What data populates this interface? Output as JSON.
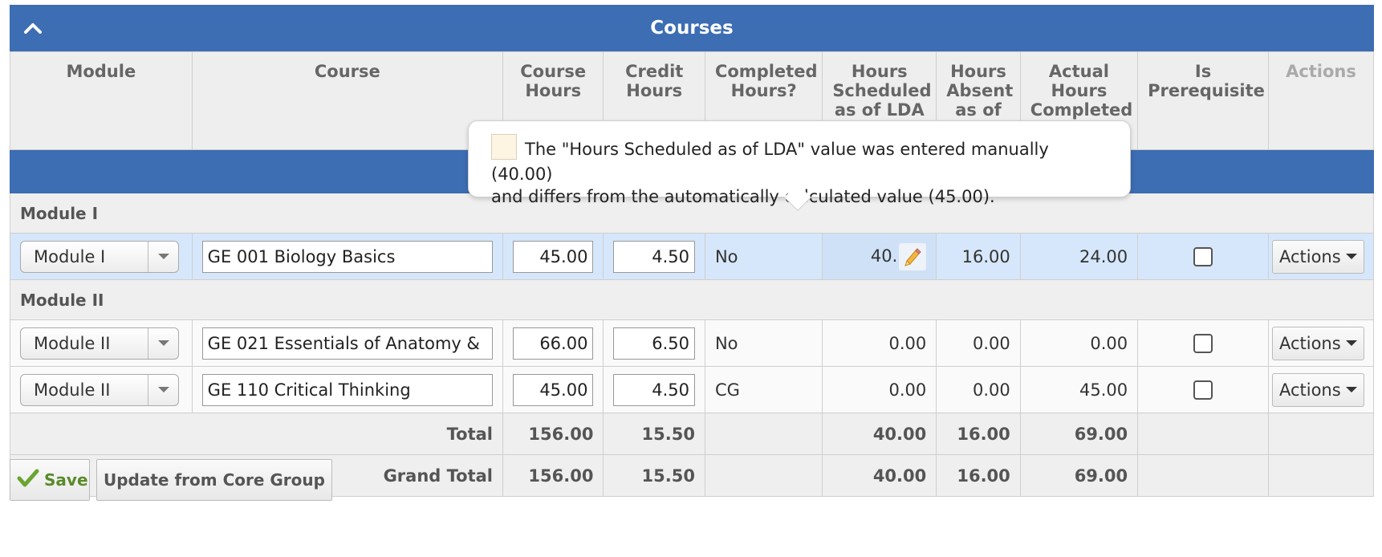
{
  "panel": {
    "title": "Courses",
    "collapse_icon": "chevron-up-icon",
    "accent_color": "#3d6db3"
  },
  "columns": {
    "module": "Module",
    "course": "Course",
    "course_hours": "Course Hours",
    "credit_hours": "Credit Hours",
    "completed": "Completed Hours?",
    "hours_scheduled": "Hours Scheduled as of LDA",
    "hours_absent": "Hours Absent as of LDA",
    "actual_hours": "Actual Hours Completed",
    "is_prerequisite": "Is Prerequisite",
    "actions": "Actions"
  },
  "groups": [
    {
      "name": "Module I",
      "rows": [
        {
          "module": "Module I",
          "course": "GE 001 Biology Basics",
          "course_hours": "45.00",
          "credit_hours": "4.50",
          "completed": "No",
          "hours_scheduled": "40.",
          "hours_absent": "16.00",
          "actual_hours": "24.00",
          "actions_label": "Actions"
        }
      ]
    },
    {
      "name": "Module II",
      "rows": [
        {
          "module": "Module II",
          "course": "GE 021 Essentials of Anatomy &",
          "course_hours": "66.00",
          "credit_hours": "6.50",
          "completed": "No",
          "hours_scheduled": "0.00",
          "hours_absent": "0.00",
          "actual_hours": "0.00",
          "actions_label": "Actions"
        },
        {
          "module": "Module II",
          "course": "GE 110 Critical Thinking",
          "course_hours": "45.00",
          "credit_hours": "4.50",
          "completed": "CG",
          "hours_scheduled": "0.00",
          "hours_absent": "0.00",
          "actual_hours": "45.00",
          "actions_label": "Actions"
        }
      ]
    }
  ],
  "totals": {
    "total": {
      "label": "Total",
      "course_hours": "156.00",
      "credit_hours": "15.50",
      "hours_scheduled": "40.00",
      "hours_absent": "16.00",
      "actual_hours": "69.00"
    },
    "grand_total": {
      "label": "Grand Total",
      "course_hours": "156.00",
      "credit_hours": "15.50",
      "hours_scheduled": "40.00",
      "hours_absent": "16.00",
      "actual_hours": "69.00"
    }
  },
  "tooltip": {
    "line1": "The \"Hours Scheduled as of LDA\" value was entered manually (40.00)",
    "line2": "and differs from the automatically calculated value (45.00).",
    "swatch_color": "#fdf5e2"
  },
  "footer": {
    "save_label": "Save",
    "update_label": "Update from Core Group"
  }
}
